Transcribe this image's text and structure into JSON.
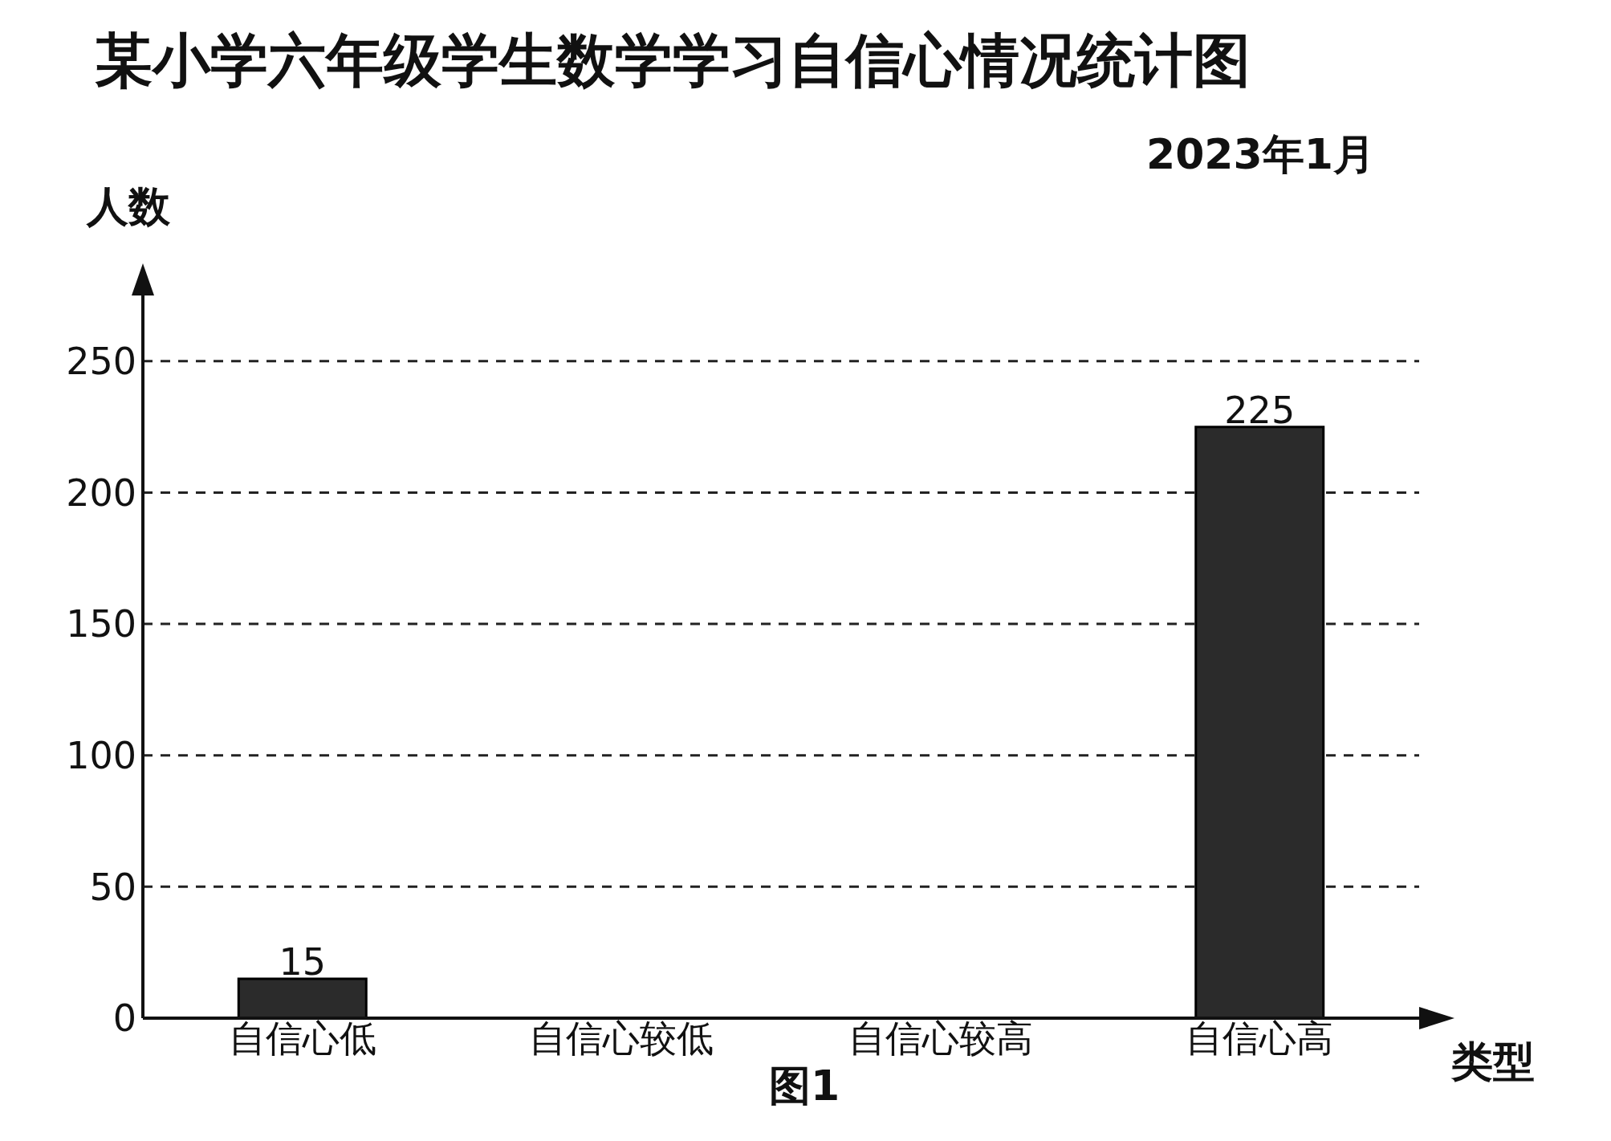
{
  "chart_data": {
    "type": "bar",
    "title": "某小学六年级学生数学学习自信心情况统计图",
    "subtitle": "2023年1月",
    "xlabel": "类型",
    "ylabel": "人数",
    "categories": [
      "自信心低",
      "自信心较低",
      "自信心较高",
      "自信心高"
    ],
    "values": [
      15,
      null,
      null,
      225
    ],
    "color": "#2b2b2b",
    "ylim": [
      0,
      275
    ],
    "yticks": [
      0,
      50,
      100,
      150,
      200,
      250
    ],
    "grid": "y",
    "data_labels": true,
    "annotations": [
      "图1"
    ]
  }
}
